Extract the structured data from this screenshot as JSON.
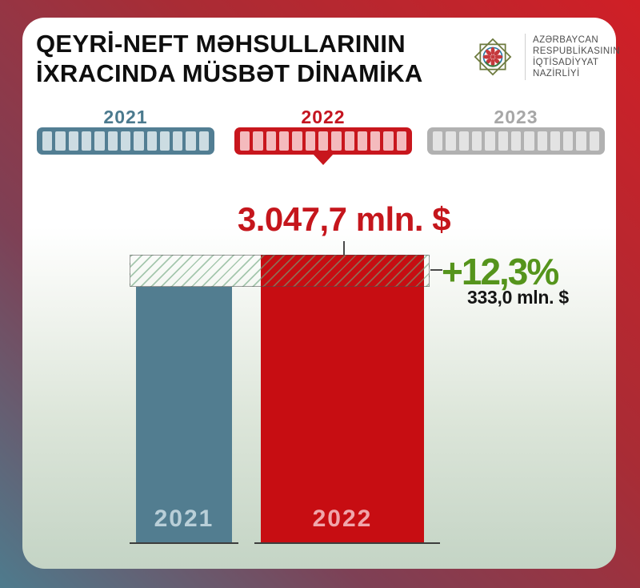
{
  "header": {
    "title_line1": "QEYRİ-NEFT MƏHSULLARININ",
    "title_line2": "İXRACINDA MÜSBƏT DİNAMİKA",
    "ministry": {
      "line1": "AZƏRBAYCAN",
      "line2": "RESPUBLİKASININ",
      "line3": "İQTİSADİYYAT",
      "line4": "NAZİRLİYİ"
    }
  },
  "timeline": {
    "years": [
      {
        "label": "2021",
        "label_color": "#4b7a8e",
        "color": "#527e93",
        "segment_color": "#ccdce2",
        "segments": 13,
        "selected": false
      },
      {
        "label": "2022",
        "label_color": "#c41420",
        "color": "#c8161d",
        "segment_color": "#f4babd",
        "segments": 13,
        "selected": true
      },
      {
        "label": "2023",
        "label_color": "#a7a7a7",
        "color": "#b1b1b1",
        "segment_color": "#e3e3e3",
        "segments": 13,
        "selected": false
      }
    ],
    "pointer_color": "#c8161d"
  },
  "chart_data": {
    "type": "bar",
    "title": "QEYRİ-NEFT MƏHSULLARININ İXRACINDA MÜSBƏT DİNAMİKA",
    "categories": [
      "2021",
      "2022"
    ],
    "values": [
      2714.7,
      3047.7
    ],
    "unit": "mln. $",
    "value_label_2022": "3.047,7 mln. $",
    "growth_percent_label": "+12,3%",
    "growth_amount_label": "333,0 mln. $",
    "bar_colors": [
      "#527d90",
      "#c70d12"
    ],
    "bar_label_colors": [
      "#b9cfd8",
      "#f0a6ab"
    ],
    "bar_labels": [
      "2021",
      "2022"
    ],
    "growth_percent_color": "#55941c",
    "legend_position": "none",
    "grid": false
  },
  "colors": {
    "accent_red": "#c8161d",
    "steel_blue": "#527d90",
    "growth_green": "#55941c",
    "frame_red": "#d01f26",
    "frame_blue": "#4e7b8d",
    "panel_bottom": "#c4d4c5"
  }
}
